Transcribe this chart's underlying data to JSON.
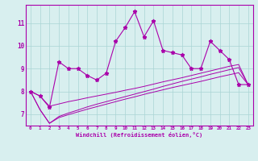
{
  "xlabel": "Windchill (Refroidissement éolien,°C)",
  "x_values": [
    0,
    1,
    2,
    3,
    4,
    5,
    6,
    7,
    8,
    9,
    10,
    11,
    12,
    13,
    14,
    15,
    16,
    17,
    18,
    19,
    20,
    21,
    22,
    23
  ],
  "main_line": [
    8.0,
    7.8,
    7.3,
    9.3,
    9.0,
    9.0,
    8.7,
    8.5,
    8.8,
    10.2,
    10.8,
    11.5,
    10.4,
    11.1,
    9.8,
    9.7,
    9.6,
    9.0,
    9.0,
    10.2,
    9.8,
    9.4,
    8.3,
    8.3
  ],
  "line2": [
    8.0,
    7.8,
    7.35,
    7.45,
    7.55,
    7.63,
    7.72,
    7.8,
    7.88,
    7.96,
    8.05,
    8.13,
    8.22,
    8.32,
    8.42,
    8.51,
    8.6,
    8.7,
    8.8,
    8.9,
    9.0,
    9.1,
    9.18,
    8.3
  ],
  "line3": [
    8.0,
    7.2,
    6.6,
    6.9,
    7.05,
    7.18,
    7.32,
    7.44,
    7.55,
    7.66,
    7.77,
    7.88,
    7.99,
    8.1,
    8.22,
    8.33,
    8.44,
    8.54,
    8.64,
    8.75,
    8.85,
    8.95,
    9.05,
    8.3
  ],
  "line4": [
    8.0,
    7.2,
    6.6,
    6.85,
    6.98,
    7.1,
    7.22,
    7.33,
    7.44,
    7.55,
    7.66,
    7.76,
    7.87,
    7.97,
    8.07,
    8.17,
    8.26,
    8.35,
    8.44,
    8.54,
    8.64,
    8.73,
    8.82,
    8.3
  ],
  "ylim": [
    6.5,
    11.8
  ],
  "yticks": [
    7,
    8,
    9,
    10,
    11
  ],
  "line_color": "#aa00aa",
  "bg_color": "#d8efef",
  "grid_color": "#aad4d4"
}
